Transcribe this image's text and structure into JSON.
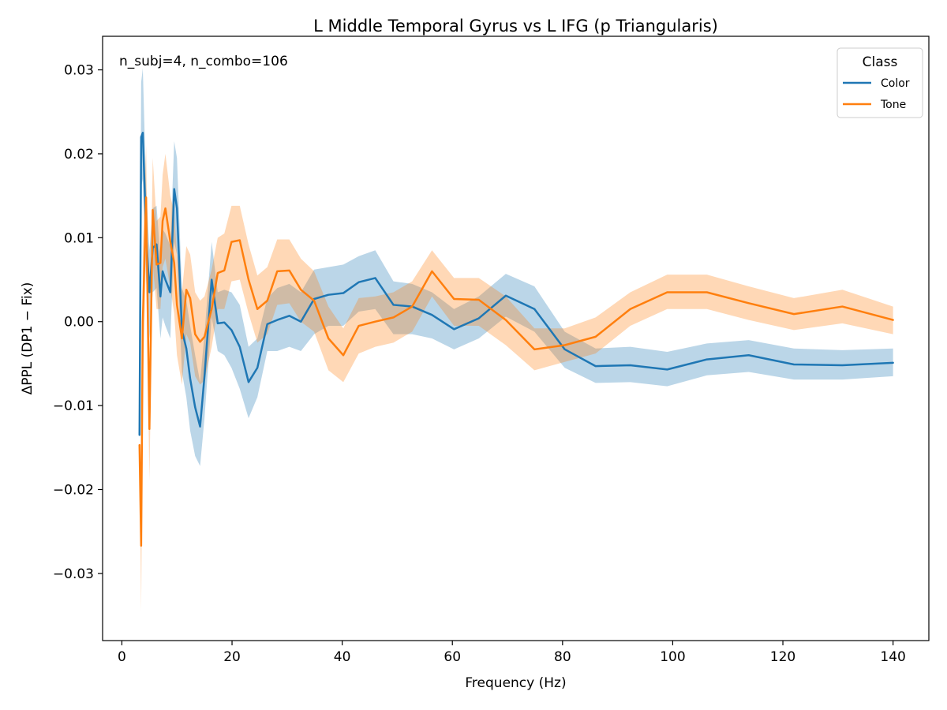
{
  "chart_data": {
    "type": "line",
    "title": "L Middle Temporal Gyrus vs L IFG (p Triangularis)",
    "xlabel": "Frequency (Hz)",
    "ylabel": "ΔPPL (DP1 − Fix)",
    "xlim": [
      -3.5,
      146.5
    ],
    "ylim": [
      -0.038,
      0.034
    ],
    "xticks": [
      0,
      20,
      40,
      60,
      80,
      100,
      120,
      140
    ],
    "xtick_labels": [
      "0",
      "20",
      "40",
      "60",
      "80",
      "100",
      "120",
      "140"
    ],
    "yticks": [
      -0.03,
      -0.02,
      -0.01,
      0.0,
      0.01,
      0.02,
      0.03
    ],
    "ytick_labels": [
      "−0.03",
      "−0.02",
      "−0.01",
      "0.00",
      "0.01",
      "0.02",
      "0.03"
    ],
    "grid": false,
    "annotation": "n_subj=4, n_combo=106",
    "legend": {
      "title": "Class",
      "position": "top-right"
    },
    "series": [
      {
        "name": "Color",
        "color": "#1f77b4",
        "band_color": "#1f77b4",
        "x": [
          3.2,
          3.5,
          3.8,
          4.4,
          5.0,
          5.6,
          6.3,
          7.0,
          7.4,
          7.9,
          8.8,
          9.5,
          10.0,
          10.9,
          11.7,
          12.4,
          13.3,
          14.2,
          15.0,
          16.3,
          17.4,
          18.6,
          19.9,
          21.4,
          23.0,
          24.6,
          26.4,
          28.2,
          30.4,
          32.5,
          34.9,
          37.5,
          40.2,
          43.0,
          46.0,
          49.3,
          52.7,
          56.3,
          60.3,
          64.8,
          69.7,
          74.9,
          80.4,
          86.0,
          92.3,
          99.0,
          106.2,
          113.8,
          122.0,
          130.8,
          140.0
        ],
        "y": [
          -0.0135,
          0.022,
          0.0225,
          0.0105,
          0.0035,
          0.0088,
          0.0092,
          0.003,
          0.006,
          0.005,
          0.0035,
          0.0158,
          0.0135,
          -0.001,
          -0.0032,
          -0.0068,
          -0.0102,
          -0.0125,
          -0.0065,
          0.005,
          -0.0002,
          -0.0001,
          -0.001,
          -0.003,
          -0.0072,
          -0.0055,
          -0.0003,
          0.0002,
          0.0007,
          0.0,
          0.0027,
          0.0032,
          0.0034,
          0.0047,
          0.0052,
          0.002,
          0.0018,
          0.0008,
          -0.0009,
          0.0004,
          0.0031,
          0.0015,
          -0.0033,
          -0.0053,
          -0.0052,
          -0.0057,
          -0.0045,
          -0.004,
          -0.0051,
          -0.0052,
          -0.0049
        ],
        "lower": [
          -0.0135,
          0.016,
          0.017,
          0.005,
          -0.002,
          0.0035,
          0.004,
          -0.002,
          0.0005,
          -0.0005,
          -0.002,
          0.0095,
          0.008,
          -0.006,
          -0.009,
          -0.013,
          -0.016,
          -0.0172,
          -0.0115,
          0.0005,
          -0.0035,
          -0.004,
          -0.0055,
          -0.008,
          -0.0115,
          -0.009,
          -0.0035,
          -0.0035,
          -0.003,
          -0.0035,
          -0.0015,
          -0.0005,
          -0.0005,
          0.0012,
          0.0015,
          -0.0015,
          -0.0015,
          -0.002,
          -0.0033,
          -0.002,
          0.0006,
          -0.0012,
          -0.0055,
          -0.0073,
          -0.0072,
          -0.0077,
          -0.0064,
          -0.006,
          -0.0069,
          -0.0069,
          -0.0065
        ],
        "upper": [
          -0.0135,
          0.0285,
          0.0302,
          0.016,
          0.0085,
          0.0135,
          0.0138,
          0.0075,
          0.011,
          0.0105,
          0.009,
          0.0215,
          0.0195,
          0.004,
          0.0025,
          -0.0005,
          -0.004,
          -0.0072,
          -0.0015,
          0.0095,
          0.0035,
          0.0038,
          0.0035,
          0.002,
          -0.003,
          -0.002,
          0.0028,
          0.004,
          0.0045,
          0.0035,
          0.0062,
          0.0065,
          0.0068,
          0.0078,
          0.0085,
          0.0048,
          0.0045,
          0.0035,
          0.0015,
          0.003,
          0.0057,
          0.0042,
          -0.0012,
          -0.0032,
          -0.003,
          -0.0036,
          -0.0026,
          -0.0022,
          -0.0032,
          -0.0034,
          -0.0032
        ]
      },
      {
        "name": "Tone",
        "color": "#ff7f0e",
        "band_color": "#ff7f0e",
        "x": [
          3.2,
          3.5,
          3.8,
          4.4,
          5.0,
          5.6,
          6.3,
          7.0,
          7.4,
          7.9,
          8.8,
          9.5,
          10.0,
          10.9,
          11.7,
          12.4,
          13.3,
          14.2,
          15.0,
          16.3,
          17.4,
          18.6,
          19.9,
          21.4,
          23.0,
          24.6,
          26.4,
          28.2,
          30.4,
          32.5,
          34.9,
          37.5,
          40.2,
          43.0,
          46.0,
          49.3,
          52.7,
          56.3,
          60.3,
          64.8,
          69.7,
          74.9,
          80.4,
          86.0,
          92.3,
          99.0,
          106.2,
          113.8,
          122.0,
          130.8,
          140.0
        ],
        "y": [
          -0.0147,
          -0.0267,
          0.0,
          0.0148,
          -0.0128,
          0.0133,
          0.0068,
          0.007,
          0.012,
          0.0135,
          0.0095,
          0.007,
          0.002,
          -0.002,
          0.0038,
          0.0028,
          -0.0015,
          -0.0024,
          -0.0018,
          0.0015,
          0.0058,
          0.0061,
          0.0095,
          0.0097,
          0.005,
          0.0015,
          0.0025,
          0.006,
          0.0061,
          0.0038,
          0.0025,
          -0.002,
          -0.004,
          -0.0005,
          0.0,
          0.0005,
          0.0018,
          0.006,
          0.0027,
          0.0026,
          0.0002,
          -0.0033,
          -0.0028,
          -0.0018,
          0.0015,
          0.0035,
          0.0035,
          0.0022,
          0.0009,
          0.0018,
          0.0002
        ],
        "lower": [
          -0.0147,
          -0.0345,
          -0.008,
          0.008,
          -0.019,
          0.007,
          0.0015,
          0.0015,
          0.0065,
          0.0075,
          0.004,
          0.001,
          -0.004,
          -0.0075,
          -0.0015,
          -0.0025,
          -0.0065,
          -0.0075,
          -0.007,
          -0.003,
          0.0015,
          0.0015,
          0.0048,
          0.005,
          0.001,
          -0.0025,
          -0.0015,
          0.002,
          0.0022,
          0.0,
          -0.0012,
          -0.0058,
          -0.0072,
          -0.0038,
          -0.003,
          -0.0025,
          -0.0012,
          0.003,
          -0.0005,
          -0.0005,
          -0.0028,
          -0.0058,
          -0.0048,
          -0.0038,
          -0.0005,
          0.0015,
          0.0015,
          0.0002,
          -0.001,
          -0.0002,
          -0.0015
        ],
        "upper": [
          -0.0147,
          -0.019,
          0.008,
          0.021,
          -0.0065,
          0.0195,
          0.012,
          0.0125,
          0.0175,
          0.02,
          0.015,
          0.013,
          0.008,
          0.0035,
          0.009,
          0.008,
          0.0035,
          0.0025,
          0.003,
          0.0062,
          0.01,
          0.0105,
          0.0138,
          0.0138,
          0.0092,
          0.0055,
          0.0065,
          0.0098,
          0.0098,
          0.0075,
          0.006,
          0.0018,
          -0.0008,
          0.0028,
          0.003,
          0.0035,
          0.0048,
          0.0085,
          0.0052,
          0.0052,
          0.003,
          -0.0008,
          -0.0008,
          0.0005,
          0.0035,
          0.0056,
          0.0056,
          0.0042,
          0.0028,
          0.0038,
          0.0018
        ]
      }
    ]
  }
}
